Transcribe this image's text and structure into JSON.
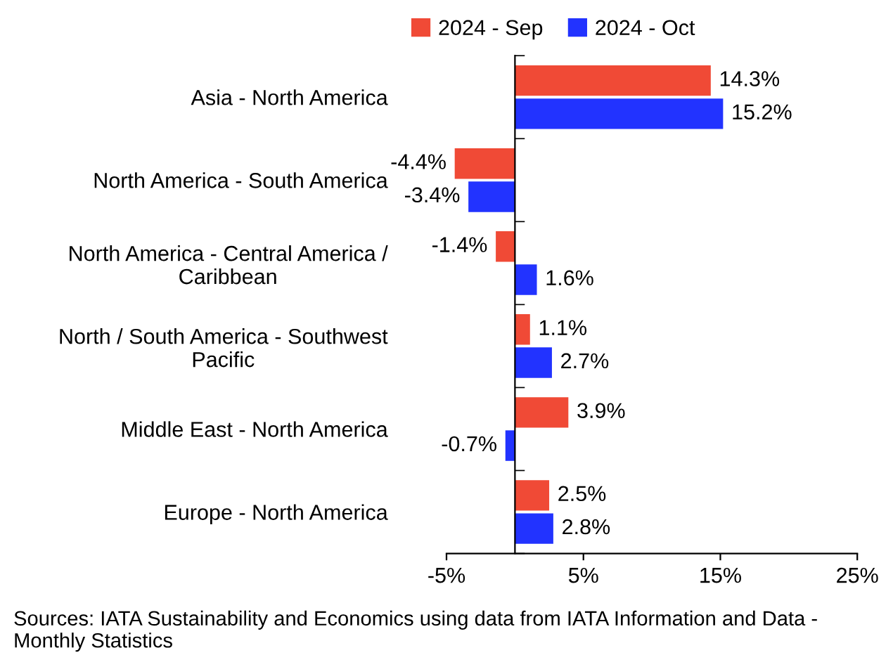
{
  "chart_data": {
    "type": "bar",
    "orientation": "horizontal",
    "categories": [
      "Asia - North America",
      "North America - South America",
      "North America - Central America / Caribbean",
      "North / South America - Southwest Pacific",
      "Middle East - North America",
      "Europe - North America"
    ],
    "series": [
      {
        "name": "2024 - Sep",
        "color": "#f04a36",
        "values": [
          14.3,
          -4.4,
          -1.4,
          1.1,
          3.9,
          2.5
        ],
        "value_labels": [
          "14.3%",
          "-4.4%",
          "-1.4%",
          "1.1%",
          "3.9%",
          "2.5%"
        ]
      },
      {
        "name": "2024 - Oct",
        "color": "#2233ff",
        "values": [
          15.2,
          -3.4,
          1.6,
          2.7,
          -0.7,
          2.8
        ],
        "value_labels": [
          "15.2%",
          "-3.4%",
          "1.6%",
          "2.7%",
          "-0.7%",
          "2.8%"
        ]
      }
    ],
    "xlim": [
      -5,
      25
    ],
    "xticks": [
      {
        "value": -5,
        "label": "-5%"
      },
      {
        "value": 5,
        "label": "5%"
      },
      {
        "value": 15,
        "label": "15%"
      },
      {
        "value": 25,
        "label": "25%"
      }
    ],
    "legend": "top",
    "grid": false,
    "annotations": [
      "Sources: IATA Sustainability and Economics using data from IATA Information and Data - Monthly Statistics"
    ]
  }
}
